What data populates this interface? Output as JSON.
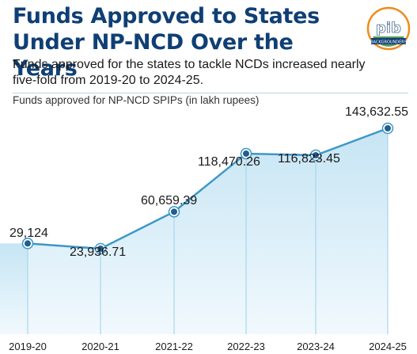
{
  "header": {
    "title": "Funds Approved to States Under NP-NCD Over the Years",
    "subtitle": "Funds approved for the states to tackle NCDs increased nearly five-fold from 2019-20 to 2024-25.",
    "chart_label": "Funds approved for NP-NCD SPIPs (in lakh rupees)"
  },
  "logo": {
    "text": "pib",
    "tagline": "BACKGROUNDERS"
  },
  "colors": {
    "title": "#0f3f74",
    "accent": "#3e96c8",
    "point": "#1f5f8f",
    "area_top": "#cfe9f6",
    "area_bottom": "#eef8fc"
  },
  "chart_data": {
    "type": "area",
    "title": "Funds approved for NP-NCD SPIPs (in lakh rupees)",
    "categories": [
      "2019-20",
      "2020-21",
      "2021-22",
      "2022-23",
      "2023-24",
      "2024-25"
    ],
    "values": [
      29124,
      23936.71,
      60659.39,
      118470.26,
      116823.45,
      143632.55
    ],
    "value_labels": [
      "29,124",
      "23,936.71",
      "60,659.39",
      "118,470.26",
      "116,823.45",
      "143,632.55"
    ],
    "ylim": [
      0,
      160000
    ],
    "grid": false,
    "legend": "none"
  }
}
